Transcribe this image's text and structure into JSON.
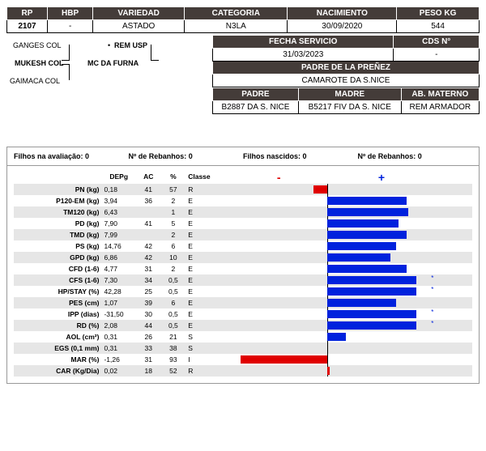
{
  "header": {
    "cols": [
      "RP",
      "HBP",
      "VARIEDAD",
      "CATEGORIA",
      "NACIMIENTO",
      "PESO KG"
    ],
    "vals": [
      "2107",
      "-",
      "ASTADO",
      "N3LA",
      "30/09/2020",
      "544"
    ]
  },
  "pedigree": {
    "sire": "MUKESH COL",
    "sire_sire": "GANGES COL",
    "sire_dam": "GAIMACA COL",
    "dam": "MC DA FURNA",
    "dam_sire": "REM USP"
  },
  "service": {
    "hdrs": [
      "FECHA SERVICIO",
      "CDS N°"
    ],
    "vals": [
      "31/03/2023",
      "-"
    ],
    "preg_hdr": "PADRE DE LA PREÑEZ",
    "preg_val": "CAMAROTE DA S.NICE",
    "par_hdrs": [
      "PADRE",
      "MADRE",
      "AB. MATERNO"
    ],
    "par_vals": [
      "B2887 DA S. NICE",
      "B5217 FIV DA S. NICE",
      "REM ARMADOR"
    ]
  },
  "eval_top": {
    "a": "Filhos na avaliação: 0",
    "b": "Nº de Rebanhos: 0",
    "c": "Filhos nascidos: 0",
    "d": "Nº de Rebanhos: 0"
  },
  "eval_cols": [
    "DEPg",
    "AC",
    "%",
    "Classe"
  ],
  "traits": [
    {
      "lbl": "PN (kg)",
      "depg": "0,18",
      "ac": "41",
      "pct": "57",
      "cls": "R",
      "bar": -14,
      "color": "#e00000",
      "star": false
    },
    {
      "lbl": "P120-EM (kg)",
      "depg": "3,94",
      "ac": "36",
      "pct": "2",
      "cls": "E",
      "bar": 78,
      "color": "#0022dd",
      "star": false
    },
    {
      "lbl": "TM120 (kg)",
      "depg": "6,43",
      "ac": "",
      "pct": "1",
      "cls": "E",
      "bar": 80,
      "color": "#0022dd",
      "star": false
    },
    {
      "lbl": "PD (kg)",
      "depg": "7,90",
      "ac": "41",
      "pct": "5",
      "cls": "E",
      "bar": 70,
      "color": "#0022dd",
      "star": false
    },
    {
      "lbl": "TMD (kg)",
      "depg": "7,99",
      "ac": "",
      "pct": "2",
      "cls": "E",
      "bar": 78,
      "color": "#0022dd",
      "star": false
    },
    {
      "lbl": "PS (kg)",
      "depg": "14,76",
      "ac": "42",
      "pct": "6",
      "cls": "E",
      "bar": 68,
      "color": "#0022dd",
      "star": false
    },
    {
      "lbl": "GPD (kg)",
      "depg": "6,86",
      "ac": "42",
      "pct": "10",
      "cls": "E",
      "bar": 62,
      "color": "#0022dd",
      "star": false
    },
    {
      "lbl": "CFD (1-6)",
      "depg": "4,77",
      "ac": "31",
      "pct": "2",
      "cls": "E",
      "bar": 78,
      "color": "#0022dd",
      "star": false
    },
    {
      "lbl": "CFS (1-6)",
      "depg": "7,30",
      "ac": "34",
      "pct": "0,5",
      "cls": "E",
      "bar": 88,
      "color": "#0022dd",
      "star": true
    },
    {
      "lbl": "HP/STAY (%)",
      "depg": "42,28",
      "ac": "25",
      "pct": "0,5",
      "cls": "E",
      "bar": 88,
      "color": "#0022dd",
      "star": true
    },
    {
      "lbl": "PES (cm)",
      "depg": "1,07",
      "ac": "39",
      "pct": "6",
      "cls": "E",
      "bar": 68,
      "color": "#0022dd",
      "star": false
    },
    {
      "lbl": "IPP (dias)",
      "depg": "-31,50",
      "ac": "30",
      "pct": "0,5",
      "cls": "E",
      "bar": 88,
      "color": "#0022dd",
      "star": true
    },
    {
      "lbl": "RD (%)",
      "depg": "2,08",
      "ac": "44",
      "pct": "0,5",
      "cls": "E",
      "bar": 88,
      "color": "#0022dd",
      "star": true
    },
    {
      "lbl": "AOL (cm²)",
      "depg": "0,31",
      "ac": "26",
      "pct": "21",
      "cls": "S",
      "bar": 18,
      "color": "#0022dd",
      "star": false
    },
    {
      "lbl": "EGS (0,1 mm)",
      "depg": "0,31",
      "ac": "33",
      "pct": "38",
      "cls": "S",
      "bar": 0,
      "color": "#0022dd",
      "star": false
    },
    {
      "lbl": "MAR (%)",
      "depg": "-1,26",
      "ac": "31",
      "pct": "93",
      "cls": "I",
      "bar": -86,
      "color": "#e00000",
      "star": false
    },
    {
      "lbl": "CAR (Kg/Dia)",
      "depg": "0,02",
      "ac": "18",
      "pct": "52",
      "cls": "R",
      "bar": 2,
      "color": "#e00000",
      "star": false
    }
  ],
  "chart": {
    "half": 125
  }
}
